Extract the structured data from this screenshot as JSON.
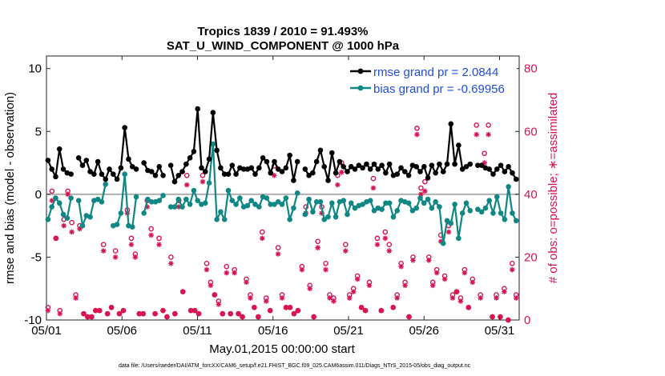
{
  "chart_data": {
    "type": "line",
    "title_line1": "Tropics 1839 / 2010 = 91.493%",
    "title_line2": "SAT_U_WIND_COMPONENT @ 1000 hPa",
    "xlabel": "May.01,2015 00:00:00 start",
    "ylabel_left": "rmse and bias (model - observation)",
    "ylabel_right": "# of obs: o=possible; ∗=assimilated",
    "ylim_left": [
      -10,
      11
    ],
    "ylim_right": [
      0,
      84
    ],
    "xlim_days": [
      0,
      31.3
    ],
    "x_tick_labels": [
      "05/01",
      "05/06",
      "05/11",
      "05/16",
      "05/21",
      "05/26",
      "05/31"
    ],
    "x_tick_days": [
      0,
      5,
      10,
      15,
      20,
      25,
      30
    ],
    "y_left_ticks": [
      -10,
      -5,
      0,
      5,
      10
    ],
    "y_right_ticks": [
      0,
      20,
      40,
      60,
      80
    ],
    "footer": "data file: /Users/raeder/DAI/ATM_forcXX/CAM6_setup/f.e21.FHIST_BGC.f09_025.CAM6assim.011/Diags_NTrS_2015-05/obs_diag_output.nc",
    "colors": {
      "rmse": "#000000",
      "bias": "#0f8784",
      "obs": "#d6134f",
      "legend_text": "#1f4fd9",
      "zero_line": "#b0b0b0"
    },
    "series": [
      {
        "name": "rmse",
        "legend": "rmse grand pr = 2.0844",
        "values": [
          2.7,
          2.0,
          1.4,
          3.6,
          2.0,
          1.7,
          1.6,
          null,
          2.9,
          2.3,
          2.7,
          1.8,
          1.6,
          2.6,
          1.6,
          1.2,
          2.0,
          1.6,
          1.2,
          2.1,
          5.3,
          2.8,
          2.2,
          2.0,
          null,
          2.5,
          1.9,
          1.8,
          1.5,
          2.2,
          1.5,
          null,
          2.3,
          1.0,
          1.5,
          1.8,
          2.4,
          2.9,
          3.4,
          6.8,
          2.1,
          1.8,
          2.8,
          6.5,
          3.5,
          2.1,
          1.6,
          1.6,
          2.3,
          1.6,
          2.1,
          2.0,
          2.0,
          2.1,
          1.6,
          2.1,
          2.9,
          2.6,
          1.7,
          2.6,
          2.0,
          1.8,
          2.1,
          3.1,
          1.1,
          2.6,
          null,
          2.0,
          1.5,
          1.7,
          2.6,
          3.5,
          2.2,
          1.1,
          3.3,
          1.7,
          2.6,
          2.2,
          1.8,
          2.2,
          2.0,
          2.3,
          2.1,
          2.4,
          2.0,
          2.4,
          2.0,
          2.3,
          1.7,
          2.4,
          1.5,
          1.6,
          2.1,
          1.8,
          1.5,
          2.3,
          2.2,
          1.8,
          2.2,
          1.3,
          2.3,
          1.7,
          2.4,
          1.8,
          2.4,
          5.6,
          2.4,
          3.9,
          2.0,
          2.2,
          2.4,
          null,
          2.3,
          2.3,
          2.1,
          2.0,
          1.6,
          2.0,
          2.3,
          1.8,
          2.2,
          1.7,
          1.2
        ]
      },
      {
        "name": "bias",
        "legend": "bias grand pr = -0.69956",
        "values": [
          -2.0,
          -1.0,
          -0.3,
          -0.7,
          -1.6,
          -1.9,
          -0.3,
          null,
          -0.5,
          -2.5,
          -1.7,
          -1.8,
          -0.5,
          -0.4,
          -0.6,
          0.8,
          null,
          -2.5,
          -2.4,
          -1.5,
          1.6,
          -2.5,
          -2.6,
          -0.2,
          null,
          -1.5,
          -0.4,
          -0.6,
          -0.6,
          -0.5,
          -0.1,
          null,
          -1.0,
          -1.0,
          -0.4,
          -1.0,
          -0.4,
          -0.8,
          0.3,
          -0.5,
          -0.8,
          -0.7,
          0.9,
          4.0,
          -2.0,
          -1.4,
          -2.0,
          0.3,
          -0.5,
          -0.8,
          -0.3,
          -1.0,
          -0.9,
          -0.5,
          -0.8,
          -1.0,
          -0.2,
          -0.3,
          -0.8,
          -0.8,
          -0.6,
          -0.8,
          -0.3,
          -2.0,
          -1.1,
          0.1,
          null,
          -1.6,
          -0.4,
          -1.4,
          -0.6,
          -0.6,
          -2.0,
          -1.8,
          -0.7,
          -1.8,
          -0.6,
          -0.5,
          -1.6,
          -0.7,
          -1.1,
          -0.9,
          -0.8,
          -0.6,
          -0.5,
          -1.3,
          -1.1,
          -1.2,
          -0.7,
          -0.7,
          -1.8,
          -1.3,
          -0.5,
          -0.6,
          -0.7,
          -1.3,
          -1.1,
          -0.3,
          -0.7,
          -0.4,
          -1.1,
          -0.6,
          -1.0,
          -3.9,
          -2.1,
          -2.3,
          -0.8,
          -3.5,
          -1.5,
          -0.7,
          -1.3,
          null,
          -1.2,
          -1.4,
          -1.1,
          -0.5,
          -1.5,
          -0.2,
          -1.5,
          -2.0,
          0.6,
          -1.5,
          -2.1
        ]
      },
      {
        "name": "obs_possible",
        "marker": "o",
        "values": [
          4,
          41,
          26,
          3,
          32,
          41,
          31,
          8,
          30,
          2,
          1,
          1,
          3,
          3,
          24,
          2,
          4,
          22,
          2,
          3,
          35,
          26,
          21,
          2,
          2,
          38,
          29,
          2,
          26,
          3,
          1,
          20,
          2,
          38,
          9,
          46,
          3,
          3,
          2,
          46,
          18,
          12,
          8,
          6,
          2,
          17,
          2,
          16,
          2,
          1,
          13,
          8,
          4,
          1,
          28,
          7,
          3,
          49,
          23,
          8,
          4,
          4,
          2,
          3,
          17,
          36,
          11,
          1,
          25,
          36,
          18,
          8,
          7,
          46,
          50,
          24,
          8,
          10,
          14,
          4,
          3,
          12,
          45,
          26,
          3,
          28,
          24,
          4,
          8,
          18,
          12,
          1,
          20,
          61,
          42,
          44,
          20,
          12,
          16,
          27,
          14,
          30,
          8,
          9,
          7,
          16,
          4,
          13,
          62,
          8,
          53,
          62,
          1,
          8,
          1,
          10,
          0,
          18,
          8
        ]
      },
      {
        "name": "obs_assimilated",
        "marker": "*",
        "values": [
          3,
          38,
          26,
          2,
          30,
          40,
          28,
          7,
          29,
          2,
          1,
          1,
          3,
          3,
          22,
          2,
          4,
          20,
          2,
          3,
          34,
          24,
          20,
          2,
          2,
          36,
          27,
          2,
          24,
          3,
          1,
          18,
          2,
          36,
          9,
          43,
          3,
          3,
          2,
          44,
          16,
          11,
          8,
          5,
          2,
          15,
          2,
          15,
          2,
          1,
          12,
          7,
          4,
          1,
          26,
          6,
          3,
          46,
          21,
          7,
          4,
          4,
          2,
          3,
          16,
          34,
          10,
          1,
          23,
          34,
          16,
          7,
          6,
          43,
          47,
          22,
          7,
          9,
          13,
          4,
          3,
          11,
          42,
          24,
          3,
          26,
          22,
          4,
          7,
          17,
          11,
          1,
          19,
          59,
          40,
          41,
          19,
          11,
          15,
          25,
          13,
          28,
          7,
          9,
          6,
          15,
          4,
          12,
          59,
          7,
          50,
          59,
          1,
          7,
          1,
          9,
          0,
          16,
          7
        ]
      }
    ]
  }
}
